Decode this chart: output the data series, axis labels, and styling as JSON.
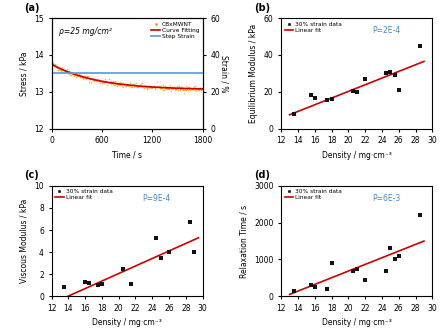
{
  "panel_a": {
    "label": "(a)",
    "rho_text": "ρ=25 mg/cm²",
    "stress_decay_amp": 0.7,
    "stress_decay_base": 13.05,
    "stress_decay_tau": 550,
    "noise_std": 0.035,
    "strain_time": [
      0,
      4,
      4,
      1800
    ],
    "strain_vals": [
      0,
      0,
      30,
      30
    ],
    "xlim": [
      0,
      1800
    ],
    "ylim_stress": [
      12,
      15
    ],
    "ylim_strain": [
      0,
      60
    ],
    "xlabel": "Time / s",
    "ylabel_left": "Stress / kPa",
    "ylabel_right": "Strain / %",
    "xticks": [
      0,
      600,
      1200,
      1800
    ],
    "yticks_left": [
      12,
      13,
      14,
      15
    ],
    "yticks_right": [
      0,
      20,
      40,
      60
    ],
    "legend_items": [
      "CBxMWNT",
      "Curve Fitting",
      "Step Strain"
    ],
    "scatter_color": "#f5a000",
    "fit_color": "#cc0000",
    "strain_color": "#5599dd"
  },
  "panel_b": {
    "label": "(b)",
    "scatter_x": [
      13.5,
      15.5,
      16.0,
      17.5,
      18.0,
      20.5,
      21.0,
      22.0,
      24.5,
      25.0,
      25.5,
      26.0,
      28.5
    ],
    "scatter_y": [
      8.0,
      18.0,
      16.5,
      15.5,
      16.0,
      20.5,
      20.0,
      27.0,
      30.0,
      31.0,
      29.0,
      21.0,
      45.0
    ],
    "fit_x": [
      13.0,
      29.0
    ],
    "fit_y": [
      7.5,
      36.5
    ],
    "xlim": [
      12,
      30
    ],
    "ylim": [
      0,
      60
    ],
    "xlabel": "Density / mg·cm⁻³",
    "ylabel": "Equilibrium Modulus / kPa",
    "xticks": [
      12,
      14,
      16,
      18,
      20,
      22,
      24,
      26,
      28,
      30
    ],
    "yticks": [
      0,
      20,
      40,
      60
    ],
    "p_text": "P=2E-4",
    "legend_items": [
      "30% strain data",
      "Linear fit"
    ],
    "scatter_color": "#111111",
    "fit_color": "#cc0000"
  },
  "panel_c": {
    "label": "(c)",
    "scatter_x": [
      13.5,
      16.0,
      16.5,
      17.5,
      18.0,
      20.5,
      21.5,
      24.5,
      25.0,
      26.0,
      28.5,
      29.0
    ],
    "scatter_y": [
      0.8,
      1.3,
      1.2,
      1.0,
      1.1,
      2.5,
      1.1,
      5.3,
      3.5,
      4.0,
      6.7,
      4.0
    ],
    "fit_x": [
      12.5,
      29.5
    ],
    "fit_y": [
      -0.5,
      5.3
    ],
    "xlim": [
      12,
      30
    ],
    "ylim": [
      0,
      10
    ],
    "xlabel": "Density / mg·cm⁻³",
    "ylabel": "Viscous Modulus / kPa",
    "xticks": [
      12,
      14,
      16,
      18,
      20,
      22,
      24,
      26,
      28,
      30
    ],
    "yticks": [
      0,
      2,
      4,
      6,
      8,
      10
    ],
    "p_text": "P=9E-4",
    "legend_items": [
      "30% strain data",
      "Linear fit"
    ],
    "scatter_color": "#111111",
    "fit_color": "#cc0000"
  },
  "panel_d": {
    "label": "(d)",
    "scatter_x": [
      13.5,
      15.5,
      16.0,
      17.5,
      18.0,
      20.5,
      21.0,
      22.0,
      24.5,
      25.0,
      25.5,
      26.0,
      28.5
    ],
    "scatter_y": [
      150,
      300,
      250,
      200,
      900,
      700,
      750,
      450,
      700,
      1300,
      1000,
      1100,
      2200
    ],
    "fit_x": [
      13.0,
      29.0
    ],
    "fit_y": [
      50,
      1500
    ],
    "xlim": [
      12,
      30
    ],
    "ylim": [
      0,
      3000
    ],
    "xlabel": "Density / mg·cm⁻³",
    "ylabel": "Relaxation Time / s",
    "xticks": [
      12,
      14,
      16,
      18,
      20,
      22,
      24,
      26,
      28,
      30
    ],
    "yticks": [
      0,
      1000,
      2000,
      3000
    ],
    "p_text": "P=6E-3",
    "legend_items": [
      "30% strain data",
      "Linear fit"
    ],
    "scatter_color": "#111111",
    "fit_color": "#cc0000"
  }
}
